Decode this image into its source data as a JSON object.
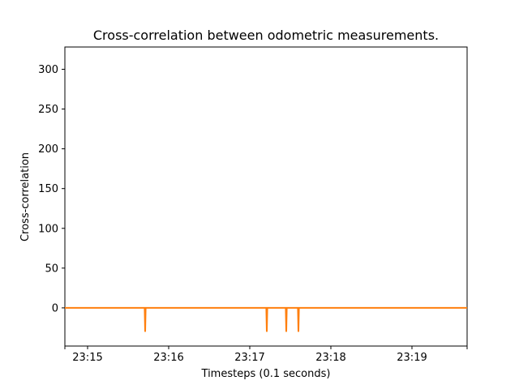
{
  "chart_data": {
    "type": "line",
    "title": "Cross-correlation between odometric measurements.",
    "xlabel": "Timesteps (0.1 seconds)",
    "ylabel": "Cross-correlation",
    "x_ticks": [
      "23:15",
      "23:16",
      "23:17",
      "23:18",
      "23:19"
    ],
    "x_tick_times_min": [
      15,
      16,
      17,
      18,
      19
    ],
    "y_ticks": [
      0,
      50,
      100,
      150,
      200,
      250,
      300
    ],
    "xlim_min": [
      14.72,
      19.68
    ],
    "ylim": [
      -48,
      328
    ],
    "grid": false,
    "series": [
      {
        "color": "#ff7f0e",
        "baseline": 0,
        "spikes": [
          {
            "time_min": 15.71,
            "value": -30
          },
          {
            "time_min": 17.21,
            "value": -30
          },
          {
            "time_min": 17.45,
            "value": -30
          },
          {
            "time_min": 17.6,
            "value": -30
          }
        ]
      }
    ]
  }
}
